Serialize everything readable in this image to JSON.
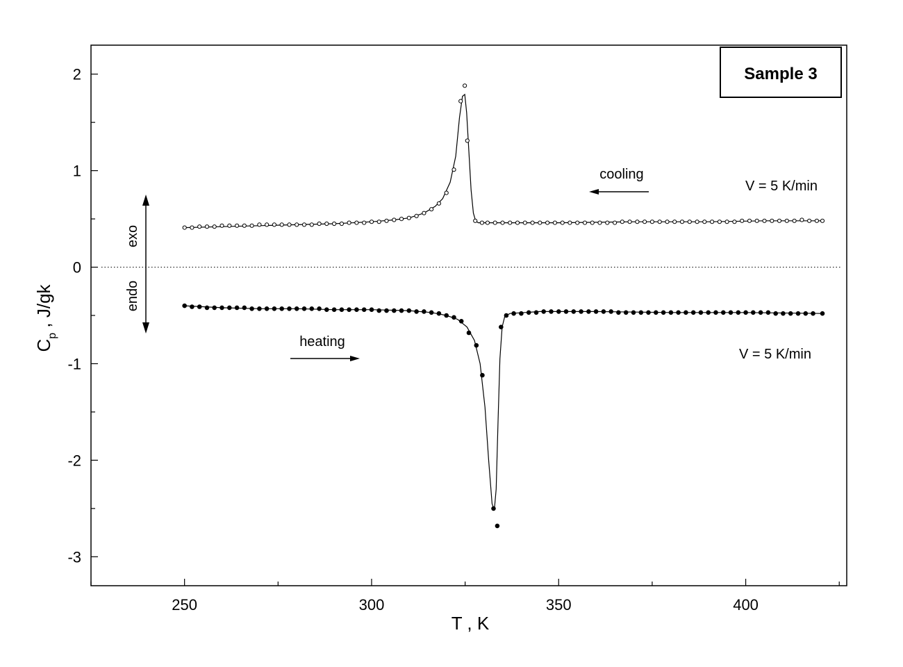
{
  "chart_data": {
    "type": "scatter",
    "title": "Sample 3",
    "xlabel": "T , K",
    "ylabel_main": "C",
    "ylabel_sub": "p",
    "ylabel_rest": " , J/gk",
    "xlim": [
      225,
      427
    ],
    "ylim": [
      -3.3,
      2.3
    ],
    "x_ticks": [
      250,
      300,
      350,
      400
    ],
    "y_ticks": [
      -3,
      -2,
      -1,
      0,
      1,
      2
    ],
    "y_tick_labels": [
      "-3",
      "-2",
      "-1",
      "0",
      "1",
      "2"
    ],
    "grid": false,
    "zero_line": true,
    "annotations": {
      "cooling": "cooling",
      "heating": "heating",
      "v_cooling": "V = 5 K/min",
      "v_heating": "V = 5 K/min",
      "exo": "exo",
      "endo": "endo"
    },
    "series": [
      {
        "name": "cooling",
        "marker": "open-circle",
        "points": [
          [
            250,
            0.41
          ],
          [
            252,
            0.41
          ],
          [
            254,
            0.42
          ],
          [
            256,
            0.42
          ],
          [
            258,
            0.42
          ],
          [
            260,
            0.43
          ],
          [
            262,
            0.43
          ],
          [
            264,
            0.43
          ],
          [
            266,
            0.43
          ],
          [
            268,
            0.43
          ],
          [
            270,
            0.44
          ],
          [
            272,
            0.44
          ],
          [
            274,
            0.44
          ],
          [
            276,
            0.44
          ],
          [
            278,
            0.44
          ],
          [
            280,
            0.44
          ],
          [
            282,
            0.44
          ],
          [
            284,
            0.44
          ],
          [
            286,
            0.45
          ],
          [
            288,
            0.45
          ],
          [
            290,
            0.45
          ],
          [
            292,
            0.45
          ],
          [
            294,
            0.46
          ],
          [
            296,
            0.46
          ],
          [
            298,
            0.46
          ],
          [
            300,
            0.47
          ],
          [
            302,
            0.47
          ],
          [
            304,
            0.48
          ],
          [
            306,
            0.49
          ],
          [
            308,
            0.5
          ],
          [
            310,
            0.51
          ],
          [
            312,
            0.53
          ],
          [
            314,
            0.56
          ],
          [
            316,
            0.6
          ],
          [
            318,
            0.66
          ],
          [
            320,
            0.77
          ],
          [
            322,
            1.01
          ],
          [
            323.8,
            1.72
          ],
          [
            324.9,
            1.88
          ],
          [
            325.6,
            1.31
          ],
          [
            327.7,
            0.48
          ],
          [
            329.5,
            0.46
          ],
          [
            331,
            0.46
          ],
          [
            333,
            0.46
          ],
          [
            335,
            0.46
          ],
          [
            337,
            0.46
          ],
          [
            339,
            0.46
          ],
          [
            341,
            0.46
          ],
          [
            343,
            0.46
          ],
          [
            345,
            0.46
          ],
          [
            347,
            0.46
          ],
          [
            349,
            0.46
          ],
          [
            351,
            0.46
          ],
          [
            353,
            0.46
          ],
          [
            355,
            0.46
          ],
          [
            357,
            0.46
          ],
          [
            359,
            0.46
          ],
          [
            361,
            0.46
          ],
          [
            363,
            0.46
          ],
          [
            365,
            0.46
          ],
          [
            367,
            0.47
          ],
          [
            369,
            0.47
          ],
          [
            371,
            0.47
          ],
          [
            373,
            0.47
          ],
          [
            375,
            0.47
          ],
          [
            377,
            0.47
          ],
          [
            379,
            0.47
          ],
          [
            381,
            0.47
          ],
          [
            383,
            0.47
          ],
          [
            385,
            0.47
          ],
          [
            387,
            0.47
          ],
          [
            389,
            0.47
          ],
          [
            391,
            0.47
          ],
          [
            393,
            0.47
          ],
          [
            395,
            0.47
          ],
          [
            397,
            0.47
          ],
          [
            399,
            0.48
          ],
          [
            401,
            0.48
          ],
          [
            403,
            0.48
          ],
          [
            405,
            0.48
          ],
          [
            407,
            0.48
          ],
          [
            409,
            0.48
          ],
          [
            411,
            0.48
          ],
          [
            413,
            0.48
          ],
          [
            415,
            0.49
          ],
          [
            417,
            0.48
          ],
          [
            419,
            0.48
          ],
          [
            420.5,
            0.48
          ]
        ],
        "fit_curve": [
          [
            250,
            0.41
          ],
          [
            260,
            0.42
          ],
          [
            270,
            0.43
          ],
          [
            280,
            0.44
          ],
          [
            290,
            0.45
          ],
          [
            300,
            0.47
          ],
          [
            306,
            0.49
          ],
          [
            310,
            0.51
          ],
          [
            314,
            0.56
          ],
          [
            317,
            0.63
          ],
          [
            319,
            0.71
          ],
          [
            321,
            0.88
          ],
          [
            322.5,
            1.15
          ],
          [
            323.5,
            1.55
          ],
          [
            324.3,
            1.77
          ],
          [
            324.9,
            1.79
          ],
          [
            325.4,
            1.6
          ],
          [
            326,
            1.2
          ],
          [
            326.6,
            0.8
          ],
          [
            327.2,
            0.56
          ],
          [
            327.8,
            0.48
          ],
          [
            328.5,
            0.46
          ],
          [
            332,
            0.46
          ],
          [
            350,
            0.46
          ],
          [
            370,
            0.47
          ],
          [
            390,
            0.47
          ],
          [
            405,
            0.48
          ],
          [
            420.5,
            0.48
          ]
        ]
      },
      {
        "name": "heating",
        "marker": "filled-circle",
        "points": [
          [
            250,
            -0.4
          ],
          [
            252,
            -0.41
          ],
          [
            254,
            -0.41
          ],
          [
            256,
            -0.42
          ],
          [
            258,
            -0.42
          ],
          [
            260,
            -0.42
          ],
          [
            262,
            -0.42
          ],
          [
            264,
            -0.42
          ],
          [
            266,
            -0.42
          ],
          [
            268,
            -0.43
          ],
          [
            270,
            -0.43
          ],
          [
            272,
            -0.43
          ],
          [
            274,
            -0.43
          ],
          [
            276,
            -0.43
          ],
          [
            278,
            -0.43
          ],
          [
            280,
            -0.43
          ],
          [
            282,
            -0.43
          ],
          [
            284,
            -0.43
          ],
          [
            286,
            -0.43
          ],
          [
            288,
            -0.44
          ],
          [
            290,
            -0.44
          ],
          [
            292,
            -0.44
          ],
          [
            294,
            -0.44
          ],
          [
            296,
            -0.44
          ],
          [
            298,
            -0.44
          ],
          [
            300,
            -0.44
          ],
          [
            302,
            -0.45
          ],
          [
            304,
            -0.45
          ],
          [
            306,
            -0.45
          ],
          [
            308,
            -0.45
          ],
          [
            310,
            -0.45
          ],
          [
            312,
            -0.46
          ],
          [
            314,
            -0.46
          ],
          [
            316,
            -0.47
          ],
          [
            318,
            -0.48
          ],
          [
            320,
            -0.5
          ],
          [
            322,
            -0.52
          ],
          [
            324,
            -0.56
          ],
          [
            326,
            -0.68
          ],
          [
            328,
            -0.81
          ],
          [
            329.6,
            -1.12
          ],
          [
            332.6,
            -2.5
          ],
          [
            333.6,
            -2.68
          ],
          [
            334.6,
            -0.62
          ],
          [
            336,
            -0.5
          ],
          [
            338,
            -0.48
          ],
          [
            340,
            -0.48
          ],
          [
            342,
            -0.47
          ],
          [
            344,
            -0.47
          ],
          [
            346,
            -0.46
          ],
          [
            348,
            -0.46
          ],
          [
            350,
            -0.46
          ],
          [
            352,
            -0.46
          ],
          [
            354,
            -0.46
          ],
          [
            356,
            -0.46
          ],
          [
            358,
            -0.46
          ],
          [
            360,
            -0.46
          ],
          [
            362,
            -0.46
          ],
          [
            364,
            -0.46
          ],
          [
            366,
            -0.47
          ],
          [
            368,
            -0.47
          ],
          [
            370,
            -0.47
          ],
          [
            372,
            -0.47
          ],
          [
            374,
            -0.47
          ],
          [
            376,
            -0.47
          ],
          [
            378,
            -0.47
          ],
          [
            380,
            -0.47
          ],
          [
            382,
            -0.47
          ],
          [
            384,
            -0.47
          ],
          [
            386,
            -0.47
          ],
          [
            388,
            -0.47
          ],
          [
            390,
            -0.47
          ],
          [
            392,
            -0.47
          ],
          [
            394,
            -0.47
          ],
          [
            396,
            -0.47
          ],
          [
            398,
            -0.47
          ],
          [
            400,
            -0.47
          ],
          [
            402,
            -0.47
          ],
          [
            404,
            -0.47
          ],
          [
            406,
            -0.47
          ],
          [
            408,
            -0.48
          ],
          [
            410,
            -0.48
          ],
          [
            412,
            -0.48
          ],
          [
            414,
            -0.48
          ],
          [
            416,
            -0.48
          ],
          [
            418,
            -0.48
          ],
          [
            420.5,
            -0.48
          ]
        ],
        "fit_curve": [
          [
            250,
            -0.4
          ],
          [
            260,
            -0.42
          ],
          [
            270,
            -0.43
          ],
          [
            280,
            -0.43
          ],
          [
            290,
            -0.44
          ],
          [
            300,
            -0.44
          ],
          [
            310,
            -0.45
          ],
          [
            316,
            -0.47
          ],
          [
            320,
            -0.5
          ],
          [
            323,
            -0.54
          ],
          [
            325.5,
            -0.62
          ],
          [
            327.5,
            -0.76
          ],
          [
            329,
            -1.0
          ],
          [
            330.3,
            -1.45
          ],
          [
            331.3,
            -2.0
          ],
          [
            332.2,
            -2.45
          ],
          [
            332.8,
            -2.52
          ],
          [
            333.3,
            -2.3
          ],
          [
            333.8,
            -1.6
          ],
          [
            334.3,
            -0.95
          ],
          [
            334.9,
            -0.62
          ],
          [
            335.6,
            -0.51
          ],
          [
            337,
            -0.48
          ],
          [
            345,
            -0.46
          ],
          [
            360,
            -0.46
          ],
          [
            380,
            -0.47
          ],
          [
            400,
            -0.47
          ],
          [
            420.5,
            -0.48
          ]
        ]
      }
    ]
  }
}
